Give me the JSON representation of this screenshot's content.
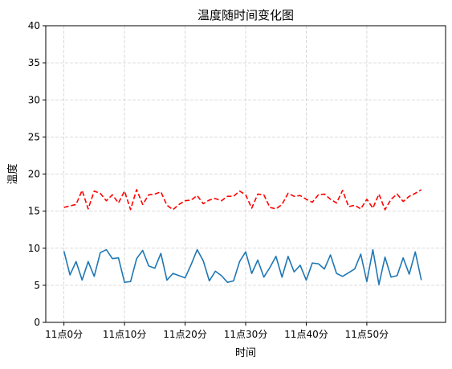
{
  "chart_data": {
    "type": "line",
    "title": "温度随时间变化图",
    "xlabel": "时间",
    "ylabel": "温度",
    "ylim": [
      0,
      40
    ],
    "xlim": [
      -3,
      63
    ],
    "yticks": [
      0,
      5,
      10,
      15,
      20,
      25,
      30,
      35,
      40
    ],
    "xticks": [
      {
        "value": 0,
        "label": "11点0分"
      },
      {
        "value": 10,
        "label": "11点10分"
      },
      {
        "value": 20,
        "label": "11点20分"
      },
      {
        "value": 30,
        "label": "11点30分"
      },
      {
        "value": 40,
        "label": "11点40分"
      },
      {
        "value": 50,
        "label": "11点50分"
      }
    ],
    "grid": true,
    "series": [
      {
        "color": "#1f77b4",
        "dash": "solid",
        "x": [
          0,
          1,
          2,
          3,
          4,
          5,
          6,
          7,
          8,
          9,
          10,
          11,
          12,
          13,
          14,
          15,
          16,
          17,
          18,
          19,
          20,
          21,
          22,
          23,
          24,
          25,
          26,
          27,
          28,
          29,
          30,
          31,
          32,
          33,
          34,
          35,
          36,
          37,
          38,
          39,
          40,
          41,
          42,
          43,
          44,
          45,
          46,
          47,
          48,
          49,
          50,
          51,
          52,
          53,
          54,
          55,
          56,
          57,
          58,
          59
        ],
        "values": [
          9.6,
          6.4,
          8.2,
          5.7,
          8.2,
          6.2,
          9.4,
          9.8,
          8.6,
          8.7,
          5.4,
          5.5,
          8.6,
          9.7,
          7.6,
          7.3,
          9.3,
          5.7,
          6.6,
          6.3,
          6.0,
          7.8,
          9.8,
          8.3,
          5.6,
          6.9,
          6.3,
          5.4,
          5.6,
          8.2,
          9.5,
          6.6,
          8.4,
          6.1,
          7.4,
          8.9,
          6.1,
          8.9,
          6.8,
          7.7,
          5.7,
          8.0,
          7.9,
          7.2,
          9.1,
          6.6,
          6.2,
          6.7,
          7.2,
          9.2,
          5.5,
          9.8,
          5.1,
          8.8,
          6.1,
          6.3,
          8.7,
          6.5,
          9.5,
          5.7
        ]
      },
      {
        "color": "#ff0000",
        "dash": "dashed",
        "x": [
          0,
          1,
          2,
          3,
          4,
          5,
          6,
          7,
          8,
          9,
          10,
          11,
          12,
          13,
          14,
          15,
          16,
          17,
          18,
          19,
          20,
          21,
          22,
          23,
          24,
          25,
          26,
          27,
          28,
          29,
          30,
          31,
          32,
          33,
          34,
          35,
          36,
          37,
          38,
          39,
          40,
          41,
          42,
          43,
          44,
          45,
          46,
          47,
          48,
          49,
          50,
          51,
          52,
          53,
          54,
          55,
          56,
          57,
          58,
          59
        ],
        "values": [
          15.5,
          15.7,
          15.9,
          17.8,
          15.3,
          17.7,
          17.4,
          16.4,
          17.2,
          16.1,
          17.7,
          15.2,
          17.9,
          15.9,
          17.2,
          17.3,
          17.6,
          15.8,
          15.2,
          15.9,
          16.4,
          16.5,
          17.1,
          16.0,
          16.5,
          16.7,
          16.4,
          17.0,
          17.0,
          17.7,
          17.2,
          15.4,
          17.3,
          17.2,
          15.5,
          15.3,
          15.9,
          17.4,
          17.0,
          17.1,
          16.6,
          16.2,
          17.2,
          17.3,
          16.6,
          16.1,
          17.8,
          15.6,
          15.8,
          15.3,
          16.6,
          15.4,
          17.3,
          15.2,
          16.6,
          17.3,
          16.3,
          17.0,
          17.4,
          17.9
        ]
      }
    ]
  }
}
